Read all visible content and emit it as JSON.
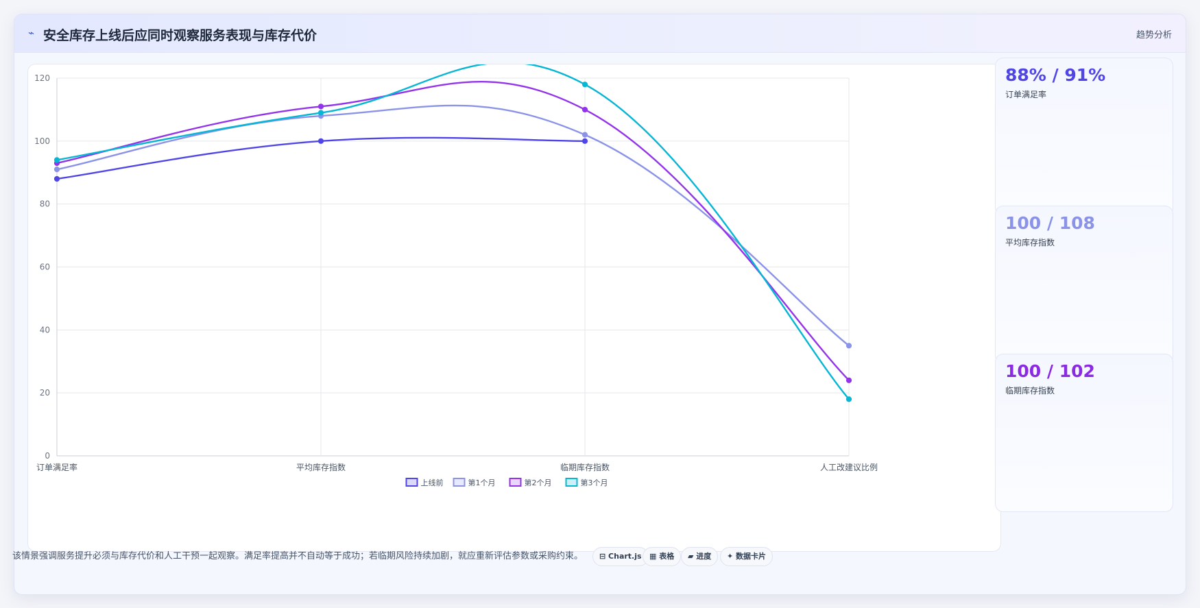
{
  "header": {
    "icon": "lightning-icon",
    "title": "安全库存上线后应同时观察服务表现与库存代价",
    "tag": "趋势分析"
  },
  "kpis": [
    {
      "value": "88% / 91%",
      "label": "订单满足率",
      "color": "#4f46e5"
    },
    {
      "value": "100 / 108",
      "label": "平均库存指数",
      "color": "#8b93e8"
    },
    {
      "value": "100 / 102",
      "label": "临期库存指数",
      "color": "#8a2be2"
    }
  ],
  "footer": {
    "note": "该情景强调服务提升必须与库存代价和人工干预一起观察。满足率提高并不自动等于成功；若临期风险持续加剧，就应重新评估参数或采购约束。",
    "chips": [
      "⊟ Chart.js",
      "▦ 表格",
      "▰ 进度",
      "✦ 数据卡片"
    ]
  },
  "chart_data": {
    "type": "line",
    "categories": [
      "订单满足率",
      "平均库存指数",
      "临期库存指数",
      "人工改建议比例"
    ],
    "ylim": [
      0,
      120
    ],
    "yticks": [
      0,
      20,
      40,
      60,
      80,
      100,
      120
    ],
    "grid": true,
    "legend_position": "bottom",
    "series": [
      {
        "name": "上线前",
        "color": "#4f46e5",
        "values": [
          88,
          100,
          100,
          null
        ]
      },
      {
        "name": "第1个月",
        "color": "#8b93e8",
        "values": [
          91,
          108,
          102,
          35
        ]
      },
      {
        "name": "第2个月",
        "color": "#9333ea",
        "values": [
          93,
          111,
          110,
          24
        ]
      },
      {
        "name": "第3个月",
        "color": "#06b6d4",
        "values": [
          94,
          109,
          118,
          18
        ]
      }
    ]
  }
}
